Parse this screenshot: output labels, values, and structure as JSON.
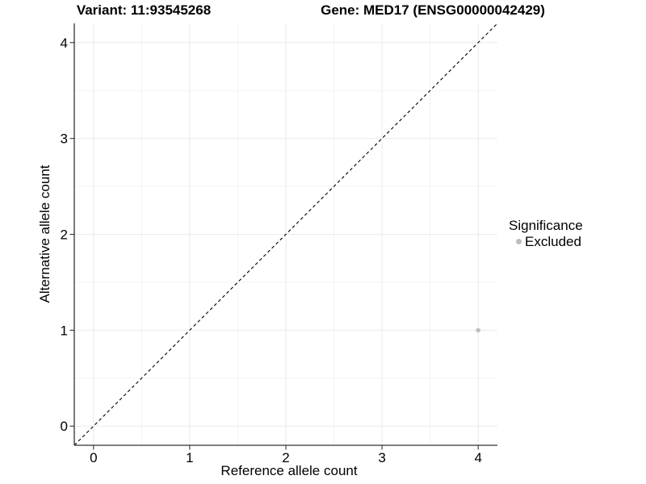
{
  "chart_data": {
    "type": "scatter",
    "titles": {
      "left": "Variant: 11:93545268",
      "right": "Gene: MED17 (ENSG00000042429)"
    },
    "xlabel": "Reference allele count",
    "ylabel": "Alternative allele count",
    "xlim": [
      -0.2,
      4.2
    ],
    "ylim": [
      -0.2,
      4.2
    ],
    "xticks": [
      0,
      1,
      2,
      3,
      4
    ],
    "yticks": [
      0,
      1,
      2,
      3,
      4
    ],
    "xminor": [
      0.5,
      1.5,
      2.5,
      3.5
    ],
    "yminor": [
      0.5,
      1.5,
      2.5,
      3.5
    ],
    "grid": "major+minor",
    "identity_line": {
      "from": [
        -0.2,
        -0.2
      ],
      "to": [
        4.2,
        4.2
      ],
      "style": "dashed",
      "color": "#000000"
    },
    "series": [
      {
        "name": "Excluded",
        "color": "#bebebe",
        "point_radius": 2.8,
        "points": [
          {
            "x": 4,
            "y": 1
          }
        ]
      }
    ],
    "legend": {
      "title": "Significance",
      "position": "right",
      "entries": [
        {
          "label": "Excluded",
          "color": "#bebebe"
        }
      ]
    },
    "colors": {
      "background": "#ffffff",
      "grid_major": "#ebebeb",
      "grid_minor": "#f3f3f3",
      "axis_line": "#333333",
      "text": "#000000"
    }
  }
}
